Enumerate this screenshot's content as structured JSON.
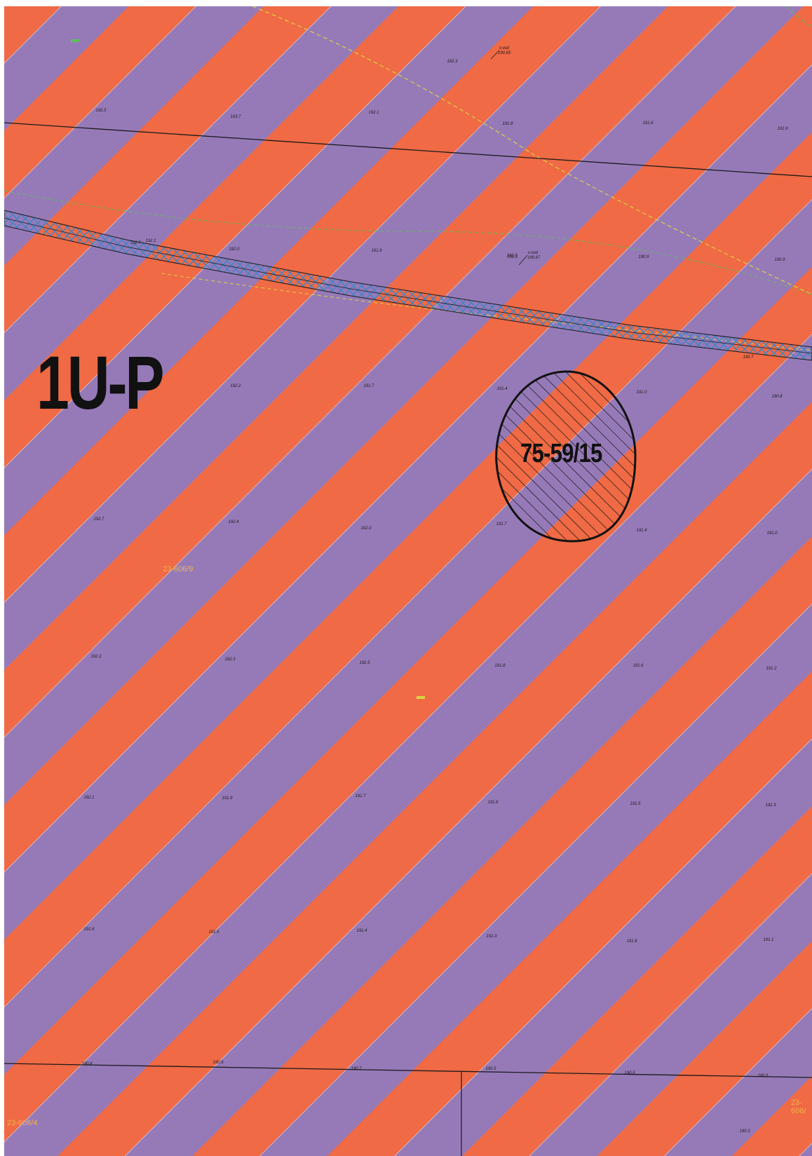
{
  "map": {
    "colors": {
      "stripe_orange": "#ef6a45",
      "stripe_purple": "#967ab8",
      "boundary": "#1a1a1a",
      "utility_corridor": "#3f84c8",
      "dash_yellow": "#d9d440",
      "dash_green": "#5fbf5a",
      "parcel_text": "#f2b14a"
    },
    "zone_label": "1U-P",
    "plot_id": "75-59/15",
    "parcel_numbers": {
      "center": "23-606/9",
      "bottom_left": "23-606/4",
      "bottom_right": "23-606/"
    },
    "elevations": [
      "192.5",
      "193.7",
      "192.1",
      "191.8",
      "191.6",
      "191.9",
      "192.3",
      "192.7",
      "192.1",
      "192.0",
      "191.9",
      "191.5",
      "191.1",
      "190.9",
      "190.9",
      "192.2",
      "191.7",
      "191.4",
      "191.0",
      "190.8",
      "192.7",
      "192.4",
      "192.0",
      "191.7",
      "191.4",
      "191.0",
      "192.2",
      "192.3",
      "192.5",
      "191.8",
      "191.6",
      "191.2",
      "192.1",
      "191.9",
      "191.7",
      "191.6",
      "191.5",
      "191.3",
      "191.6",
      "191.5",
      "191.4",
      "191.3",
      "191.8",
      "191.1",
      "190.8",
      "190.9",
      "190.7",
      "190.5",
      "190.5",
      "190.5",
      "190.7",
      "190.3"
    ],
    "point_labels": [
      {
        "title": "v.vod",
        "value": "190.65"
      },
      {
        "title": "v.vod",
        "value": "190.67"
      }
    ]
  }
}
